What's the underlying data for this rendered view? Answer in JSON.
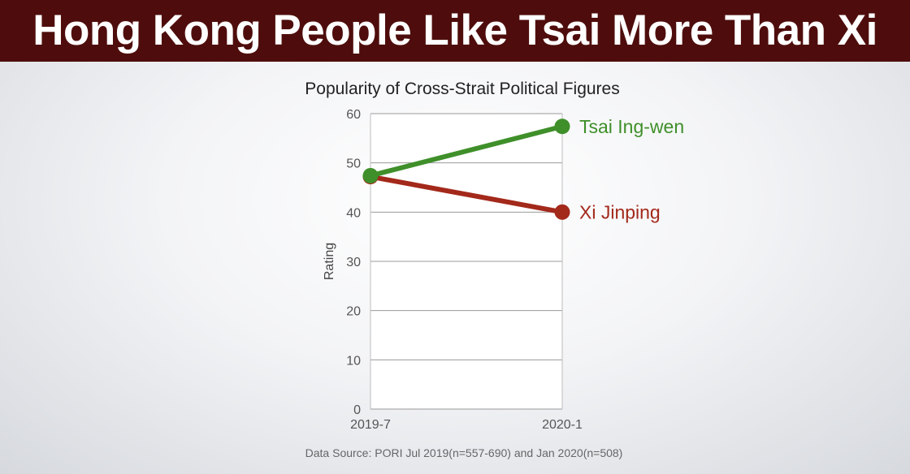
{
  "banner": {
    "title": "Hong Kong People Like Tsai More Than Xi",
    "background": "#4e0d0c"
  },
  "chart_data": {
    "type": "line",
    "title": "Popularity of Cross-Strait Political Figures",
    "xlabel": "",
    "ylabel": "Rating",
    "categories": [
      "2019-7",
      "2020-1"
    ],
    "ylim": [
      0,
      60
    ],
    "yticks": [
      0,
      10,
      20,
      30,
      40,
      50,
      60
    ],
    "grid": true,
    "legend": "direct labels at line ends (right)",
    "series": [
      {
        "name": "Xi Jinping",
        "color": "#a3291b",
        "values": [
          47.2,
          40.0
        ]
      },
      {
        "name": "Tsai Ing-wen",
        "color": "#3f8f2a",
        "values": [
          47.4,
          57.4
        ]
      }
    ]
  },
  "footer": {
    "source": "Data Source: PORI Jul 2019(n=557-690) and Jan 2020(n=508)"
  }
}
